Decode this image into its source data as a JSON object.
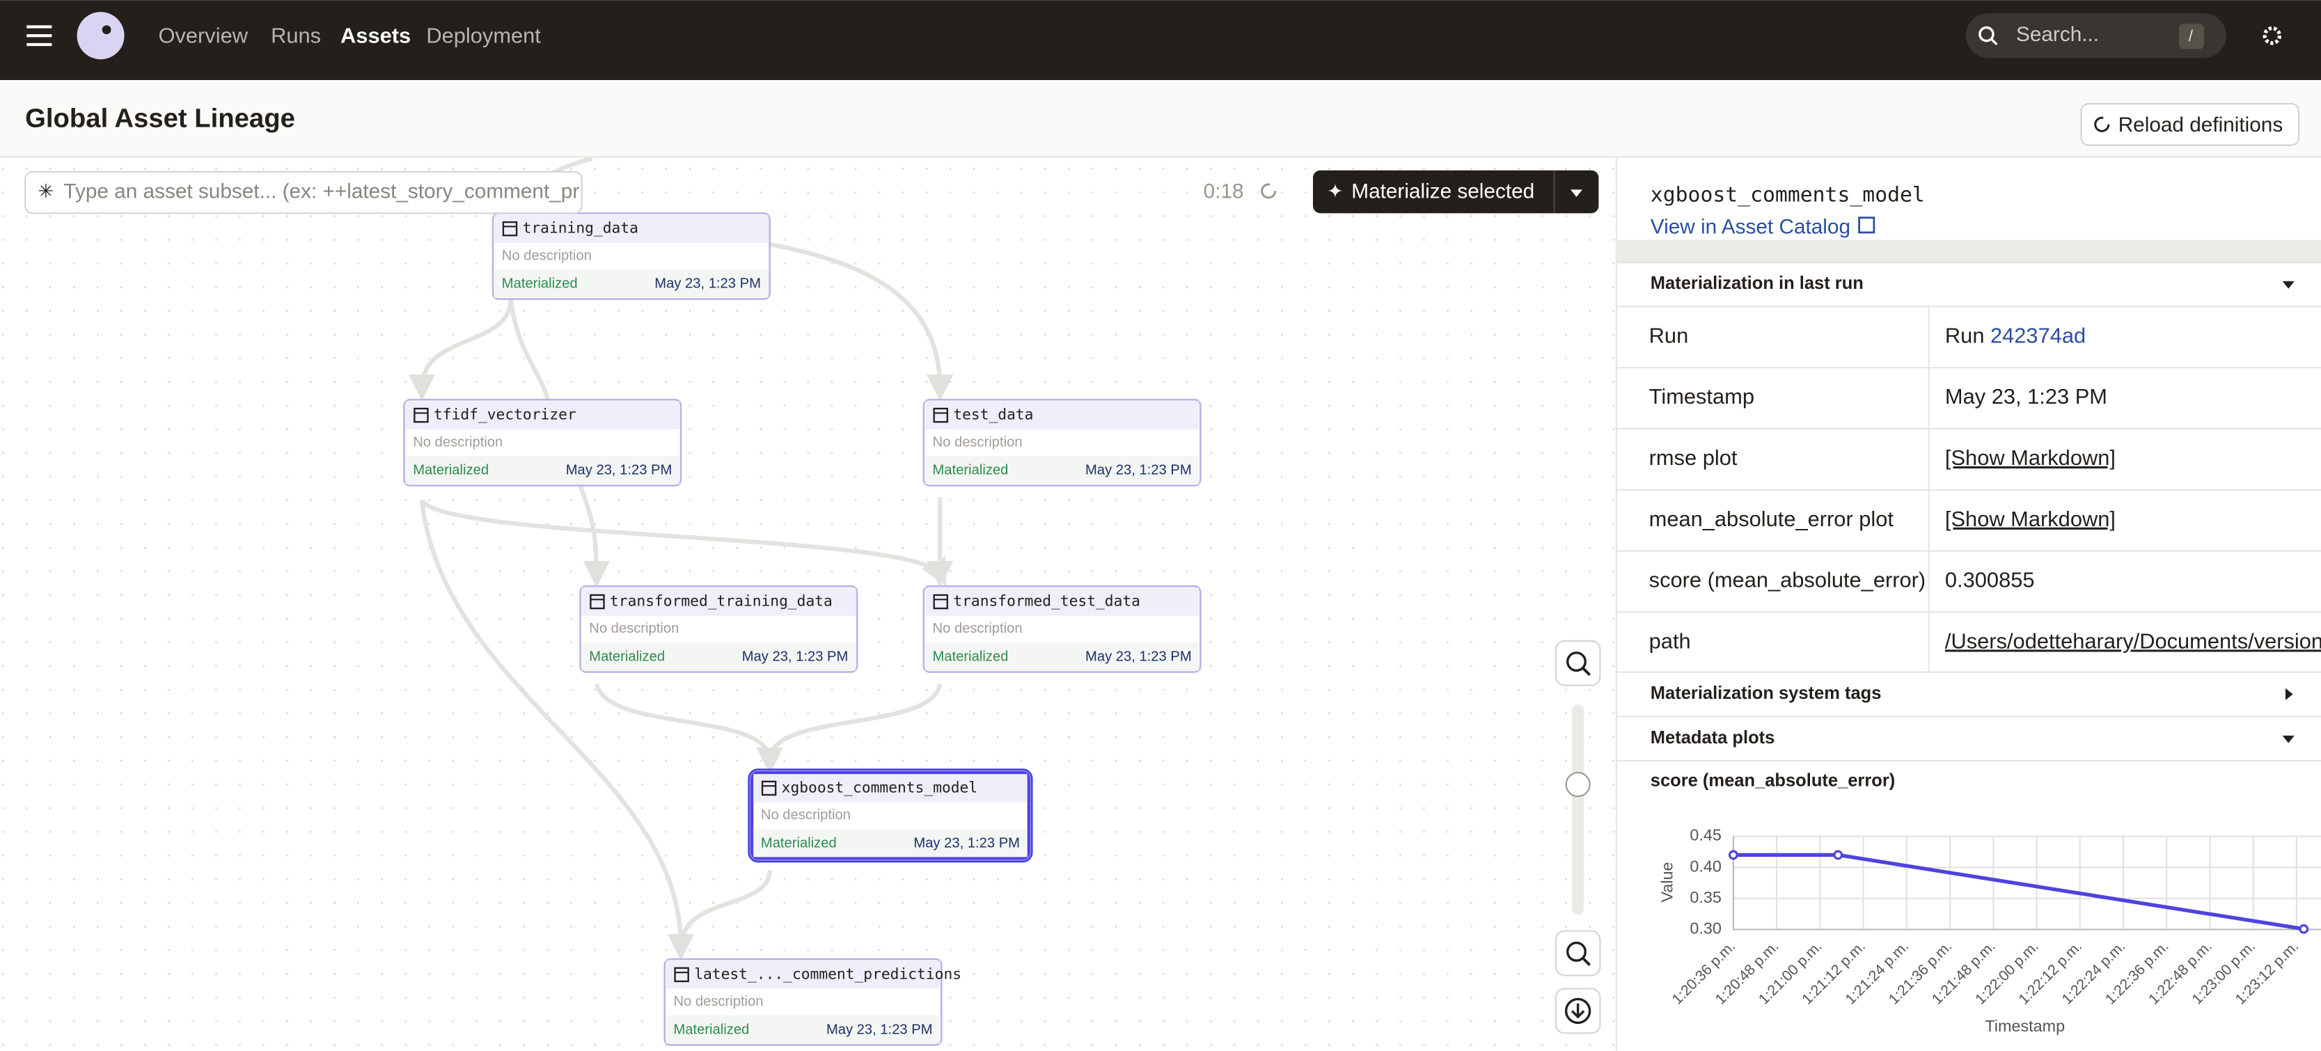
{
  "nav": {
    "items": [
      "Overview",
      "Runs",
      "Assets",
      "Deployment"
    ],
    "active": 2,
    "search_placeholder": "Search...",
    "search_shortcut": "/"
  },
  "page": {
    "title": "Global Asset Lineage",
    "reload_button": "Reload definitions"
  },
  "graph": {
    "filter_placeholder": "Type an asset subset... (ex: ++latest_story_comment_pr",
    "refresh_timer": "0:18",
    "materialize_button": "Materialize selected",
    "selected": 5,
    "nodes": [
      {
        "name": "training_data",
        "description": "No description",
        "status": "Materialized",
        "timestamp": "May 23, 1:23 PM"
      },
      {
        "name": "tfidf_vectorizer",
        "description": "No description",
        "status": "Materialized",
        "timestamp": "May 23, 1:23 PM"
      },
      {
        "name": "test_data",
        "description": "No description",
        "status": "Materialized",
        "timestamp": "May 23, 1:23 PM"
      },
      {
        "name": "transformed_training_data",
        "description": "No description",
        "status": "Materialized",
        "timestamp": "May 23, 1:23 PM"
      },
      {
        "name": "transformed_test_data",
        "description": "No description",
        "status": "Materialized",
        "timestamp": "May 23, 1:23 PM"
      },
      {
        "name": "xgboost_comments_model",
        "description": "No description",
        "status": "Materialized",
        "timestamp": "May 23, 1:23 PM"
      },
      {
        "name": "latest_..._comment_predictions",
        "description": "No description",
        "status": "Materialized",
        "timestamp": "May 23, 1:23 PM"
      }
    ]
  },
  "panel": {
    "asset_name": "xgboost_comments_model",
    "catalog_link": "View in Asset Catalog",
    "sections": [
      "Materialization in last run",
      "Materialization system tags",
      "Metadata plots"
    ],
    "rows": [
      {
        "label": "Run",
        "value": "Run",
        "link": "242374ad"
      },
      {
        "label": "Timestamp",
        "value": "May 23, 1:23 PM"
      },
      {
        "label": "rmse plot",
        "link": "[Show Markdown]"
      },
      {
        "label": "mean_absolute_error plot",
        "link": "[Show Markdown]"
      },
      {
        "label": "score (mean_absolute_error)",
        "value": "0.300855"
      },
      {
        "label": "path",
        "link": "/Users/odetteharary/Documents/version"
      }
    ]
  },
  "chart_data": {
    "type": "line",
    "title": "score (mean_absolute_error)",
    "x_label": "Timestamp",
    "y_label": "Value",
    "x": [
      48036,
      48065,
      48194
    ],
    "values": [
      0.42,
      0.42,
      0.300855
    ],
    "color": "#4f43dd",
    "xlim": [
      48036,
      48200
    ],
    "ylim": [
      0.3,
      0.45
    ],
    "grid": true,
    "xticks": [
      {
        "value": 48036,
        "label": "1:20:36 p.m."
      },
      {
        "value": 48048,
        "label": "1:20:48 p.m."
      },
      {
        "value": 48060,
        "label": "1:21:00 p.m."
      },
      {
        "value": 48072,
        "label": "1:21:12 p.m."
      },
      {
        "value": 48084,
        "label": "1:21:24 p.m."
      },
      {
        "value": 48096,
        "label": "1:21:36 p.m."
      },
      {
        "value": 48108,
        "label": "1:21:48 p.m."
      },
      {
        "value": 48120,
        "label": "1:22:00 p.m."
      },
      {
        "value": 48132,
        "label": "1:22:12 p.m."
      },
      {
        "value": 48144,
        "label": "1:22:24 p.m."
      },
      {
        "value": 48156,
        "label": "1:22:36 p.m."
      },
      {
        "value": 48168,
        "label": "1:22:48 p.m."
      },
      {
        "value": 48180,
        "label": "1:23:00 p.m."
      },
      {
        "value": 48192,
        "label": "1:23:12 p.m."
      }
    ],
    "yticks": [
      {
        "value": 0.3,
        "label": "0.30"
      },
      0.35,
      {
        "value": 0.4,
        "label": "0.40"
      },
      0.45
    ]
  }
}
